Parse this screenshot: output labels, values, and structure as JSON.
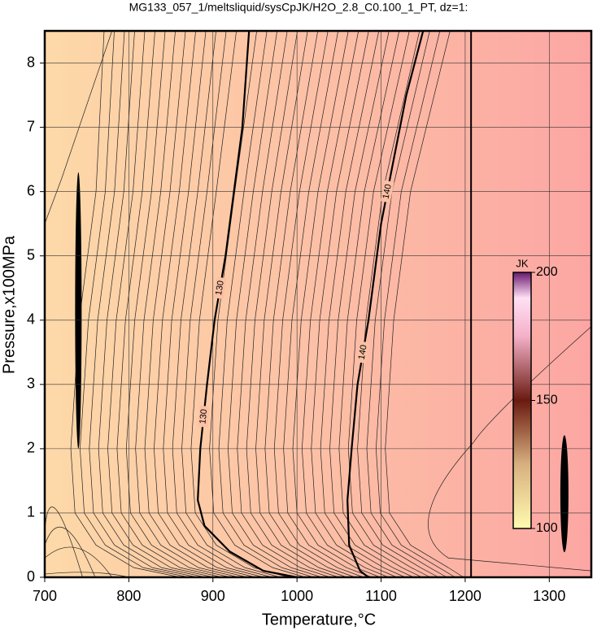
{
  "chart_data": {
    "type": "contour",
    "title": "MG133_057_1/meltsliquid/sysCpJK/H2O_2.8_C0.100_1_PT, dz=1:",
    "xlabel": "Temperature,°C",
    "ylabel": "Pressure,x100MPa",
    "xlim": [
      700,
      1350
    ],
    "ylim": [
      0,
      8.5
    ],
    "xticks": [
      700,
      800,
      900,
      1000,
      1100,
      1200,
      1300
    ],
    "yticks": [
      0,
      1,
      2,
      3,
      4,
      5,
      6,
      7,
      8
    ],
    "grid": true,
    "background_colors": [
      "#fdd9a8",
      "#fca6a3"
    ],
    "boundary_x": 1207,
    "contours": [
      {
        "level": 130,
        "x": [
          1000,
          960,
          920,
          890,
          882,
          885,
          893,
          902,
          915,
          925,
          935,
          943
        ],
        "y": [
          0,
          0.1,
          0.4,
          0.8,
          1.2,
          2,
          3,
          4,
          5,
          6,
          7,
          8.5
        ]
      },
      {
        "level": 140,
        "x": [
          1085,
          1075,
          1062,
          1060,
          1065,
          1072,
          1085,
          1100,
          1115,
          1130,
          1150
        ],
        "y": [
          0,
          0.1,
          0.5,
          1.2,
          2,
          3,
          4,
          5.5,
          6.5,
          7.5,
          8.5
        ]
      }
    ],
    "colorbar": {
      "label": "JK",
      "lim": [
        100,
        200
      ],
      "ticks": [
        100,
        150,
        200
      ]
    }
  }
}
